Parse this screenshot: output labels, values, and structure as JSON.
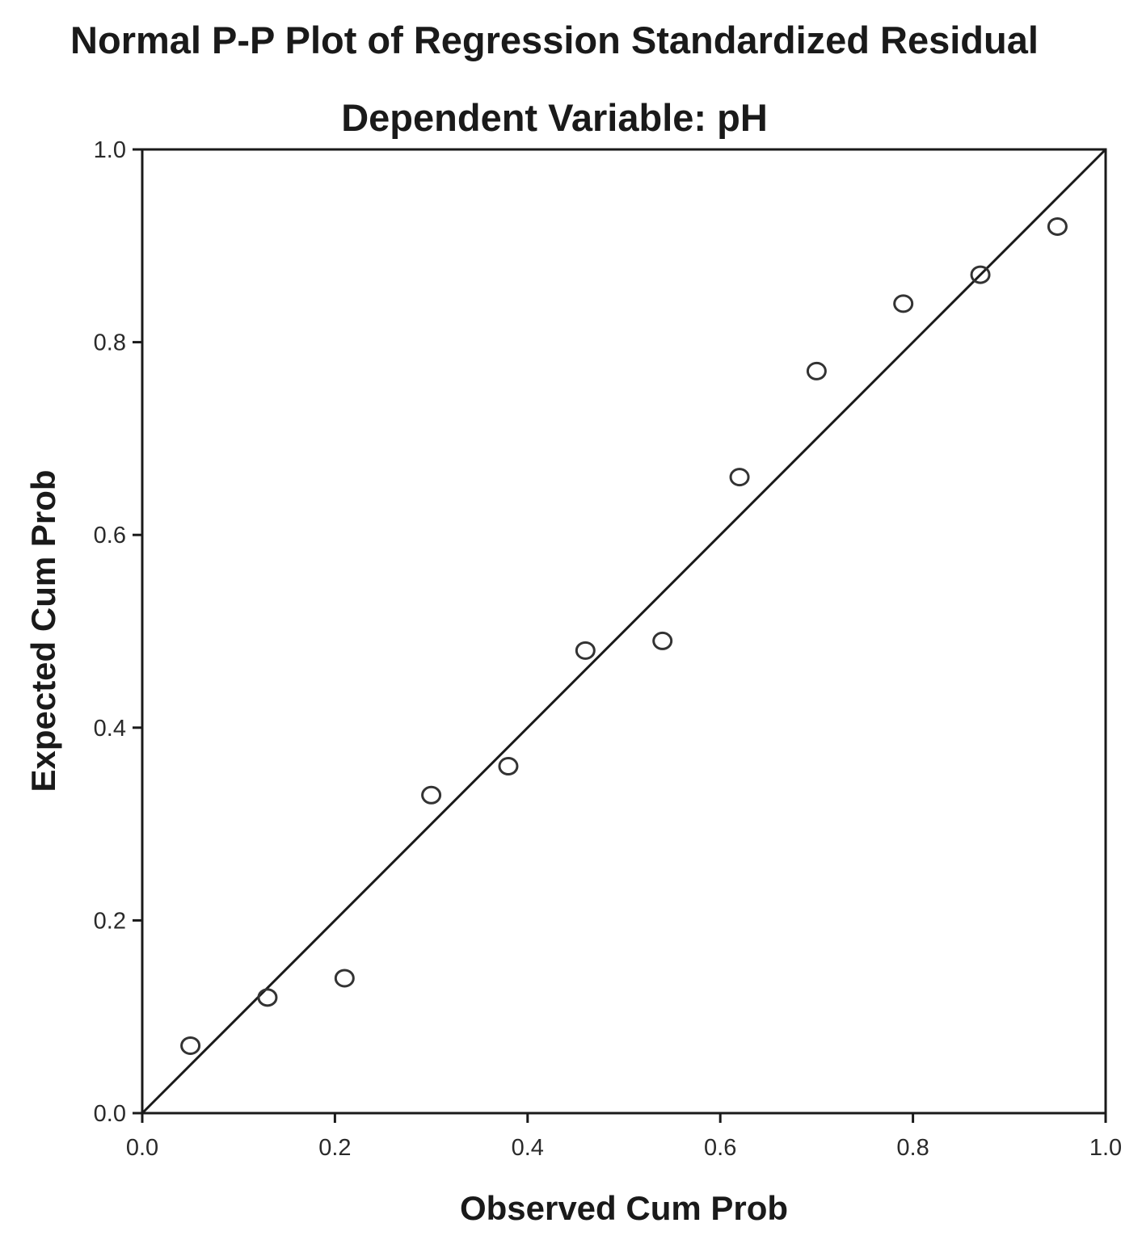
{
  "chart_data": {
    "type": "scatter",
    "title": "Normal P-P Plot of Regression Standardized Residual",
    "subtitle": "Dependent Variable: pH",
    "xlabel": "Observed Cum Prob",
    "ylabel": "Expected Cum Prob",
    "xlim": [
      0.0,
      1.0
    ],
    "ylim": [
      0.0,
      1.0
    ],
    "x_ticks": [
      "0.0",
      "0.2",
      "0.4",
      "0.6",
      "0.8",
      "1.0"
    ],
    "y_ticks": [
      "0.0",
      "0.2",
      "0.4",
      "0.6",
      "0.8",
      "1.0"
    ],
    "grid": false,
    "reference_line": {
      "from": [
        0.0,
        0.0
      ],
      "to": [
        1.0,
        1.0
      ]
    },
    "marker": "hollow-circle",
    "points": [
      {
        "x": 0.05,
        "y": 0.07
      },
      {
        "x": 0.13,
        "y": 0.12
      },
      {
        "x": 0.21,
        "y": 0.14
      },
      {
        "x": 0.3,
        "y": 0.33
      },
      {
        "x": 0.38,
        "y": 0.36
      },
      {
        "x": 0.46,
        "y": 0.48
      },
      {
        "x": 0.54,
        "y": 0.49
      },
      {
        "x": 0.62,
        "y": 0.66
      },
      {
        "x": 0.7,
        "y": 0.77
      },
      {
        "x": 0.79,
        "y": 0.84
      },
      {
        "x": 0.87,
        "y": 0.87
      },
      {
        "x": 0.95,
        "y": 0.92
      }
    ]
  },
  "colors": {
    "axis": "#1a1a1a",
    "marker_stroke": "#333333",
    "line": "#1a1a1a",
    "background": "#ffffff"
  }
}
